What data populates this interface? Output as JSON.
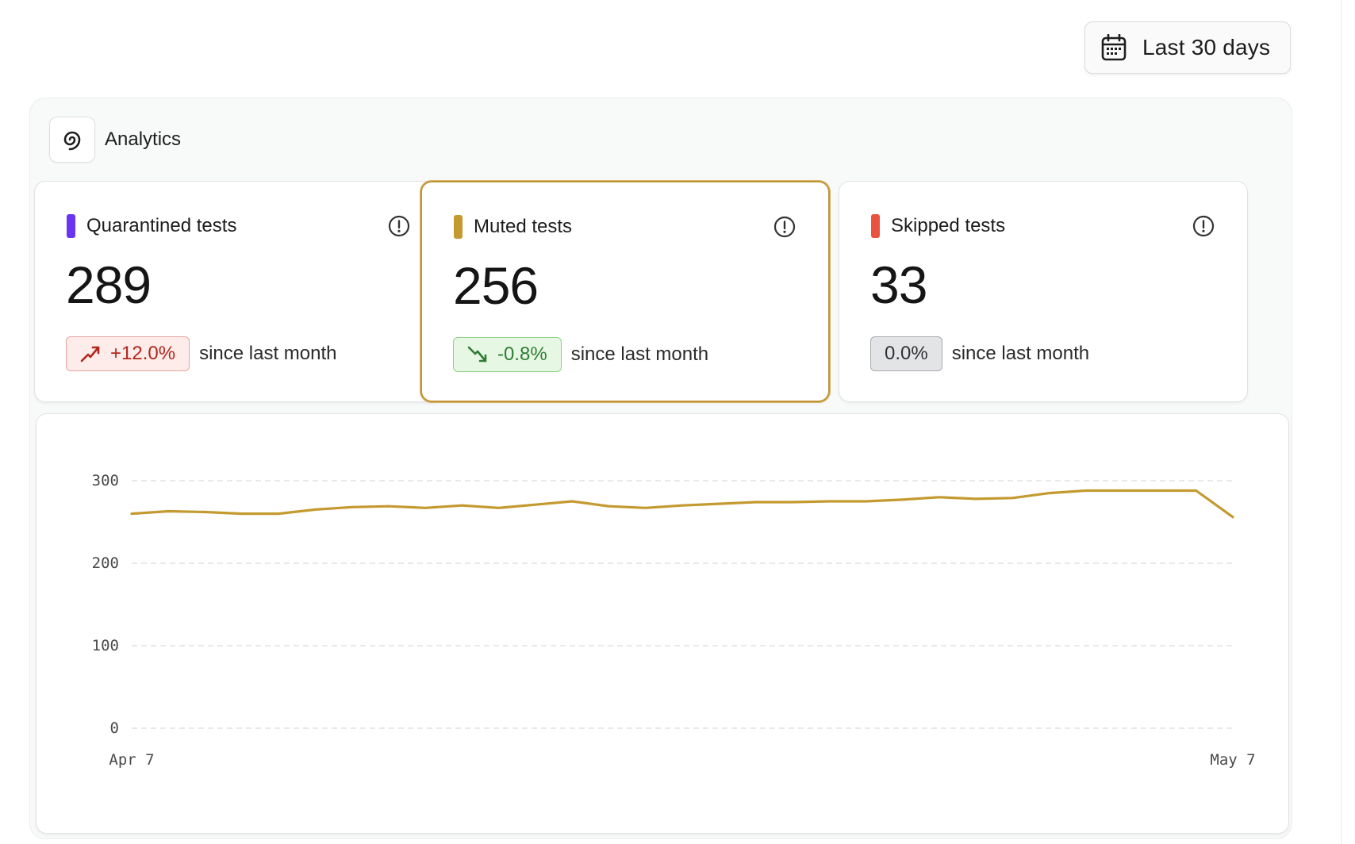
{
  "date_range": {
    "label": "Last 30 days",
    "icon": "calendar-icon"
  },
  "analytics": {
    "title": "Analytics",
    "icon": "analytics-spiral-icon",
    "cards": [
      {
        "title": "Quarantined tests",
        "value": "289",
        "delta": "+12.0%",
        "delta_direction": "up",
        "since": "since last month",
        "color": "#6a35f2",
        "active": false
      },
      {
        "title": "Muted tests",
        "value": "256",
        "delta": "-0.8%",
        "delta_direction": "down",
        "since": "since last month",
        "color": "#c49a30",
        "active": true
      },
      {
        "title": "Skipped tests",
        "value": "33",
        "delta": "0.0%",
        "delta_direction": "flat",
        "since": "since last month",
        "color": "#e9523f",
        "active": false
      }
    ]
  },
  "chart_data": {
    "type": "line",
    "x_tick_labels": [
      "Apr 7",
      "May 7"
    ],
    "y_ticks": [
      0,
      100,
      200,
      300
    ],
    "ylim": [
      0,
      300
    ],
    "grid": true,
    "series": [
      {
        "color": "#c49a30",
        "values": [
          260,
          263,
          262,
          260,
          260,
          265,
          268,
          269,
          267,
          270,
          267,
          271,
          275,
          269,
          267,
          270,
          272,
          274,
          274,
          275,
          275,
          277,
          280,
          278,
          279,
          285,
          288,
          288,
          288,
          288,
          256
        ]
      }
    ]
  }
}
